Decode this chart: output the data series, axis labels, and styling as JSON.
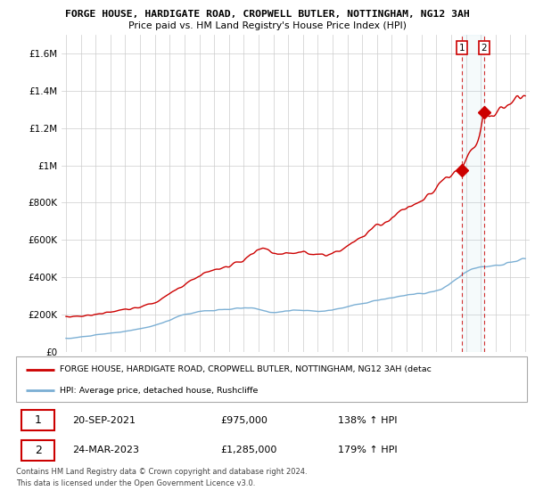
{
  "title": "FORGE HOUSE, HARDIGATE ROAD, CROPWELL BUTLER, NOTTINGHAM, NG12 3AH",
  "subtitle": "Price paid vs. HM Land Registry's House Price Index (HPI)",
  "red_label": "FORGE HOUSE, HARDIGATE ROAD, CROPWELL BUTLER, NOTTINGHAM, NG12 3AH (detac",
  "blue_label": "HPI: Average price, detached house, Rushcliffe",
  "sale1_date": "20-SEP-2021",
  "sale1_price": "£975,000",
  "sale1_hpi": "138% ↑ HPI",
  "sale2_date": "24-MAR-2023",
  "sale2_price": "£1,285,000",
  "sale2_hpi": "179% ↑ HPI",
  "footer1": "Contains HM Land Registry data © Crown copyright and database right 2024.",
  "footer2": "This data is licensed under the Open Government Licence v3.0.",
  "ylim": [
    0,
    1700000
  ],
  "yticks": [
    0,
    200000,
    400000,
    600000,
    800000,
    1000000,
    1200000,
    1400000,
    1600000
  ],
  "ytick_labels": [
    "£0",
    "£200K",
    "£400K",
    "£600K",
    "£800K",
    "£1M",
    "£1.2M",
    "£1.4M",
    "£1.6M"
  ],
  "red_color": "#cc0000",
  "blue_color": "#7bafd4",
  "background_color": "#ffffff",
  "grid_color": "#cccccc",
  "sale1_year": 2021.72,
  "sale1_val": 975000,
  "sale2_year": 2023.23,
  "sale2_val": 1285000,
  "xmin": 1995.0,
  "xmax": 2026.0
}
